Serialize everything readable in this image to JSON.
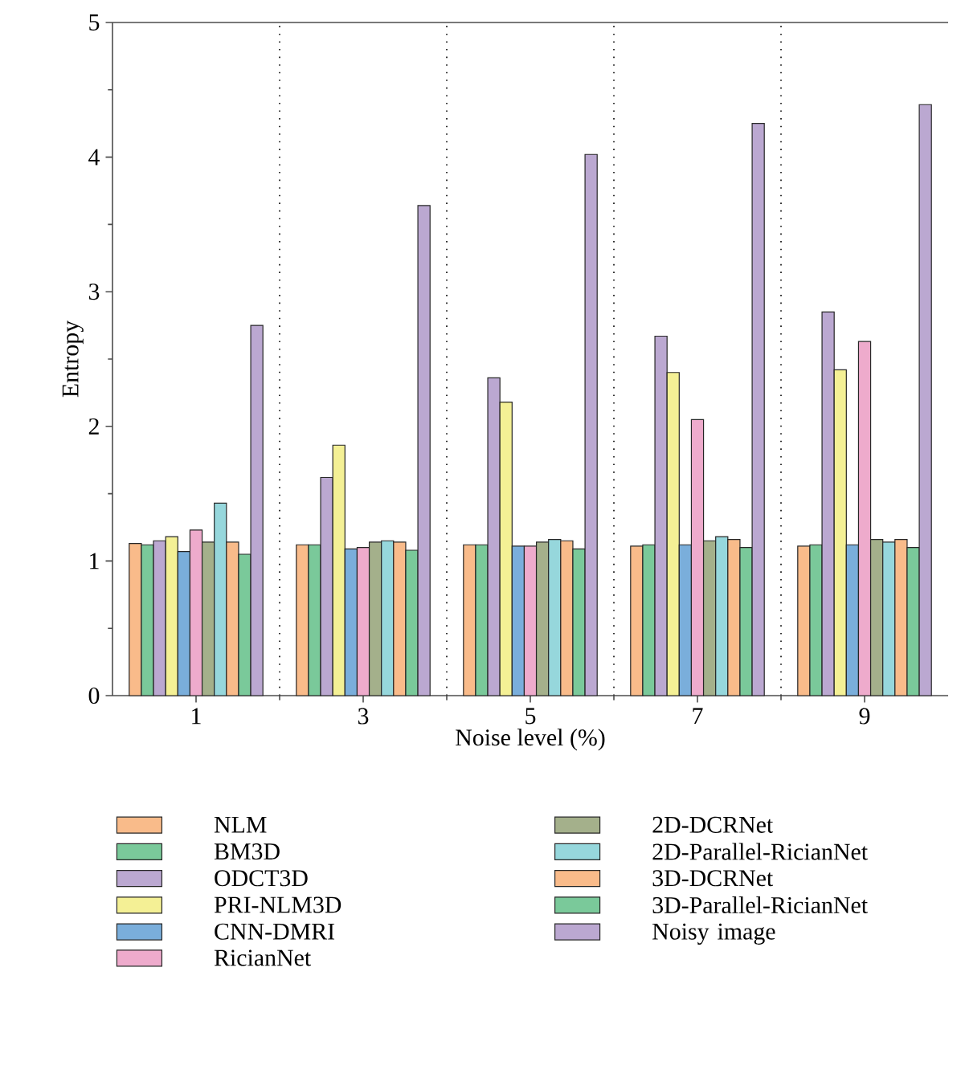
{
  "chart_data": {
    "type": "bar",
    "xlabel": "Noise level (%)",
    "ylabel": "Entropy",
    "categories": [
      "1",
      "3",
      "5",
      "7",
      "9"
    ],
    "ylim": [
      0,
      5
    ],
    "yticks": [
      0,
      1,
      2,
      3,
      4,
      5
    ],
    "legend": "bottom",
    "series": [
      {
        "name": "NLM",
        "color": "#f9bb8a",
        "values": [
          1.13,
          1.12,
          1.12,
          1.11,
          1.11
        ]
      },
      {
        "name": "BM3D",
        "color": "#7ac99a",
        "values": [
          1.12,
          1.12,
          1.12,
          1.12,
          1.12
        ]
      },
      {
        "name": "ODCT3D",
        "color": "#bba8d1",
        "values": [
          1.15,
          1.62,
          2.36,
          2.67,
          2.85
        ]
      },
      {
        "name": "PRI-NLM3D",
        "color": "#f4f095",
        "values": [
          1.18,
          1.86,
          2.18,
          2.4,
          2.42
        ]
      },
      {
        "name": "CNN-DMRI",
        "color": "#7aaedb",
        "values": [
          1.07,
          1.09,
          1.11,
          1.12,
          1.12
        ]
      },
      {
        "name": "RicianNet",
        "color": "#eeabcc",
        "values": [
          1.23,
          1.1,
          1.11,
          2.05,
          2.63
        ]
      },
      {
        "name": "2D-DCRNet",
        "color": "#a4b08b",
        "values": [
          1.14,
          1.14,
          1.14,
          1.15,
          1.16
        ]
      },
      {
        "name": "2D-Parallel-RicianNet",
        "color": "#96d7dc",
        "values": [
          1.43,
          1.15,
          1.16,
          1.18,
          1.14
        ]
      },
      {
        "name": "3D-DCRNet",
        "color": "#f9bb8a",
        "values": [
          1.14,
          1.14,
          1.15,
          1.16,
          1.16
        ]
      },
      {
        "name": "3D-Parallel-RicianNet",
        "color": "#7ac99a",
        "values": [
          1.05,
          1.08,
          1.09,
          1.1,
          1.1
        ]
      },
      {
        "name": "Noisy image",
        "color": "#bba8d1",
        "values": [
          2.75,
          3.64,
          4.02,
          4.25,
          4.39
        ]
      }
    ]
  }
}
